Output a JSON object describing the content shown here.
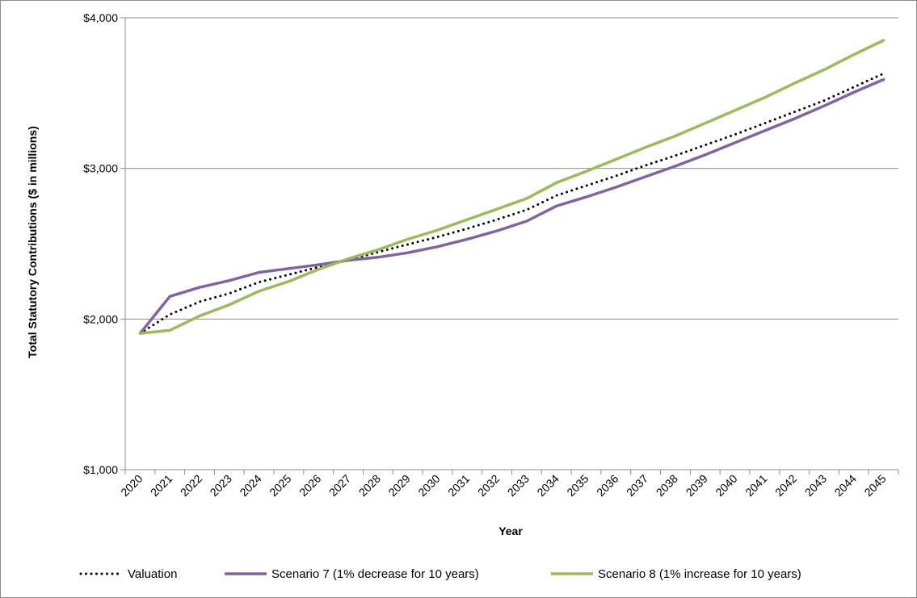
{
  "chart_data": {
    "type": "line",
    "xlabel": "Year",
    "ylabel": "Total Statutory Contributions ($ in millions)",
    "ylim": [
      1000,
      4000
    ],
    "y_ticks": [
      "$1,000",
      "$2,000",
      "$3,000",
      "$4,000"
    ],
    "y_tick_values": [
      1000,
      2000,
      3000,
      4000
    ],
    "grid": "horizontal",
    "legend_position": "bottom",
    "categories": [
      "2020",
      "2021",
      "2022",
      "2023",
      "2024",
      "2025",
      "2026",
      "2027",
      "2028",
      "2029",
      "2030",
      "2031",
      "2032",
      "2033",
      "2034",
      "2035",
      "2036",
      "2037",
      "2038",
      "2039",
      "2040",
      "2041",
      "2042",
      "2043",
      "2044",
      "2045"
    ],
    "series": [
      {
        "name": "Valuation",
        "color": "#000000",
        "style": "dotted",
        "values": [
          1905,
          2030,
          2115,
          2170,
          2245,
          2295,
          2345,
          2390,
          2445,
          2495,
          2545,
          2600,
          2660,
          2725,
          2820,
          2885,
          2950,
          3020,
          3085,
          3155,
          3225,
          3300,
          3375,
          3450,
          3540,
          3630
        ]
      },
      {
        "name": "Scenario 7 (1% decrease for 10 years)",
        "color": "#8064a2",
        "style": "solid",
        "values": [
          1905,
          2150,
          2210,
          2255,
          2310,
          2335,
          2360,
          2390,
          2410,
          2440,
          2480,
          2530,
          2585,
          2650,
          2750,
          2810,
          2875,
          2945,
          3015,
          3090,
          3170,
          3250,
          3330,
          3415,
          3505,
          3590
        ]
      },
      {
        "name": "Scenario 8 (1% increase for 10 years)",
        "color": "#9bbb59",
        "style": "solid",
        "values": [
          1905,
          1925,
          2020,
          2095,
          2185,
          2250,
          2330,
          2400,
          2460,
          2530,
          2590,
          2660,
          2730,
          2800,
          2905,
          2980,
          3060,
          3140,
          3215,
          3300,
          3385,
          3470,
          3565,
          3655,
          3755,
          3850
        ]
      }
    ]
  }
}
